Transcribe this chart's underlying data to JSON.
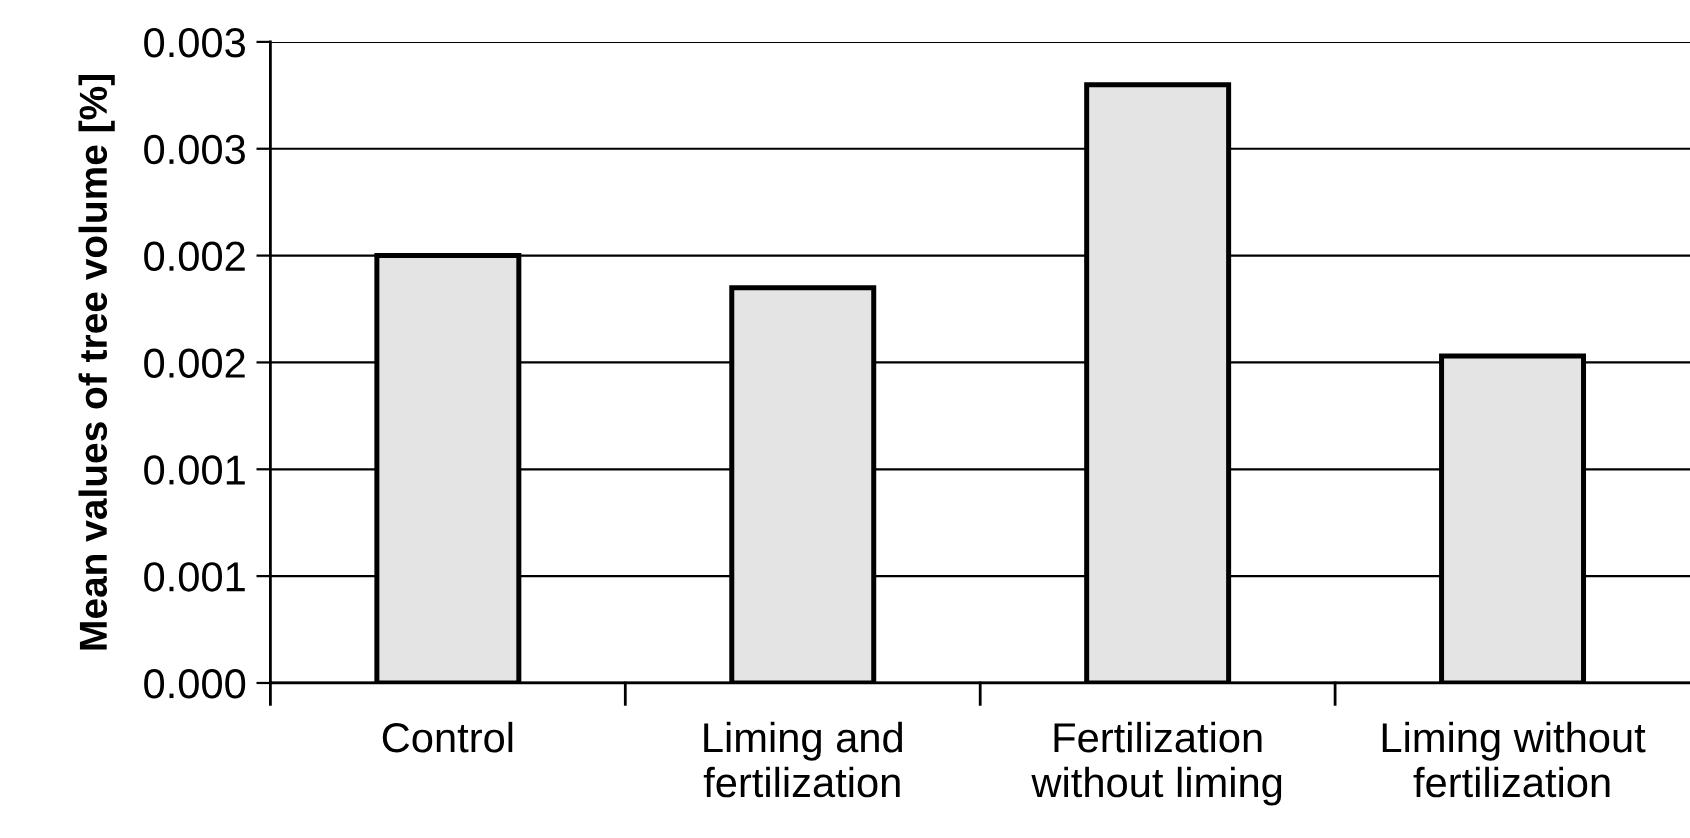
{
  "chart_data": {
    "type": "bar",
    "ylabel": "Mean values of tree volume [%]",
    "categories": [
      "Control",
      "Liming and\nfertilization",
      "Fertilization\nwithout liming",
      "Liming without\nfertilization"
    ],
    "values": [
      0.002,
      0.00185,
      0.0028,
      0.00153
    ],
    "color": "#e4e4e4",
    "ylim": [
      0,
      0.003
    ],
    "yticks": [
      {
        "value": 0,
        "label": "0.000"
      },
      {
        "value": 0.0005,
        "label": "0.001"
      },
      {
        "value": 0.001,
        "label": "0.001"
      },
      {
        "value": 0.0015,
        "label": "0.002"
      },
      {
        "value": 0.002,
        "label": "0.002"
      },
      {
        "value": 0.0025,
        "label": "0.003"
      },
      {
        "value": 0.003,
        "label": "0.003"
      }
    ],
    "grid": "y"
  }
}
